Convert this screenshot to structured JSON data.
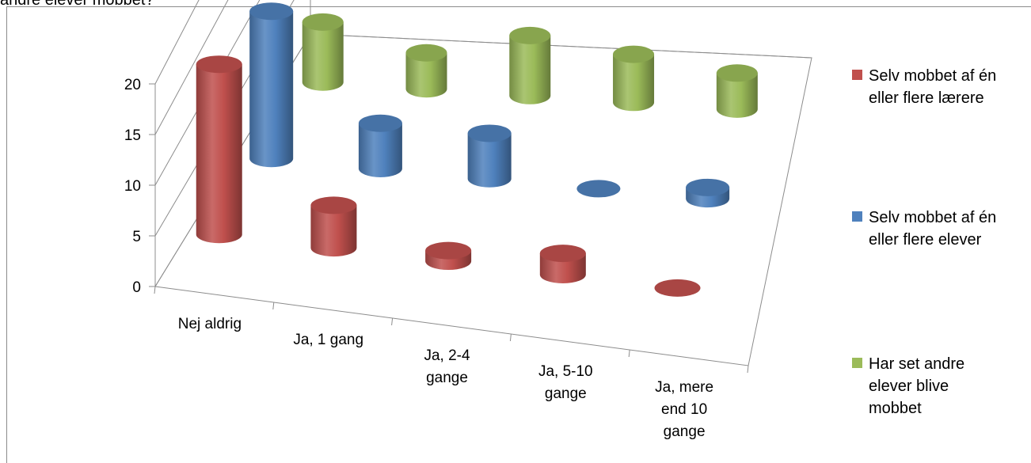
{
  "caption": "andre elever mobbet?",
  "chart_data": {
    "type": "bar",
    "subtype": "3d-cylinder",
    "categories": [
      [
        "Nej aldrig"
      ],
      [
        "Ja, 1 gang"
      ],
      [
        "Ja, 2-4",
        "gange"
      ],
      [
        "Ja, 5-10",
        "gange"
      ],
      [
        "Ja, mere",
        "end 10",
        "gange"
      ]
    ],
    "ylim": [
      0,
      20
    ],
    "yticks": [
      0,
      5,
      10,
      15,
      20
    ],
    "series": [
      {
        "name": [
          "Selv mobbet af én",
          "eller flere lærere"
        ],
        "color": "#c0504d",
        "values": [
          16,
          4,
          1,
          2,
          0
        ]
      },
      {
        "name": [
          "Selv mobbet af én",
          "eller flere elever"
        ],
        "color": "#4f81bd",
        "values": [
          13,
          4,
          4,
          0,
          1
        ]
      },
      {
        "name": [
          "Har set andre",
          "elever blive",
          "mobbet"
        ],
        "color": "#9bbb59",
        "values": [
          5,
          3,
          5,
          4,
          3
        ]
      }
    ],
    "grid": true,
    "legend": "right"
  }
}
